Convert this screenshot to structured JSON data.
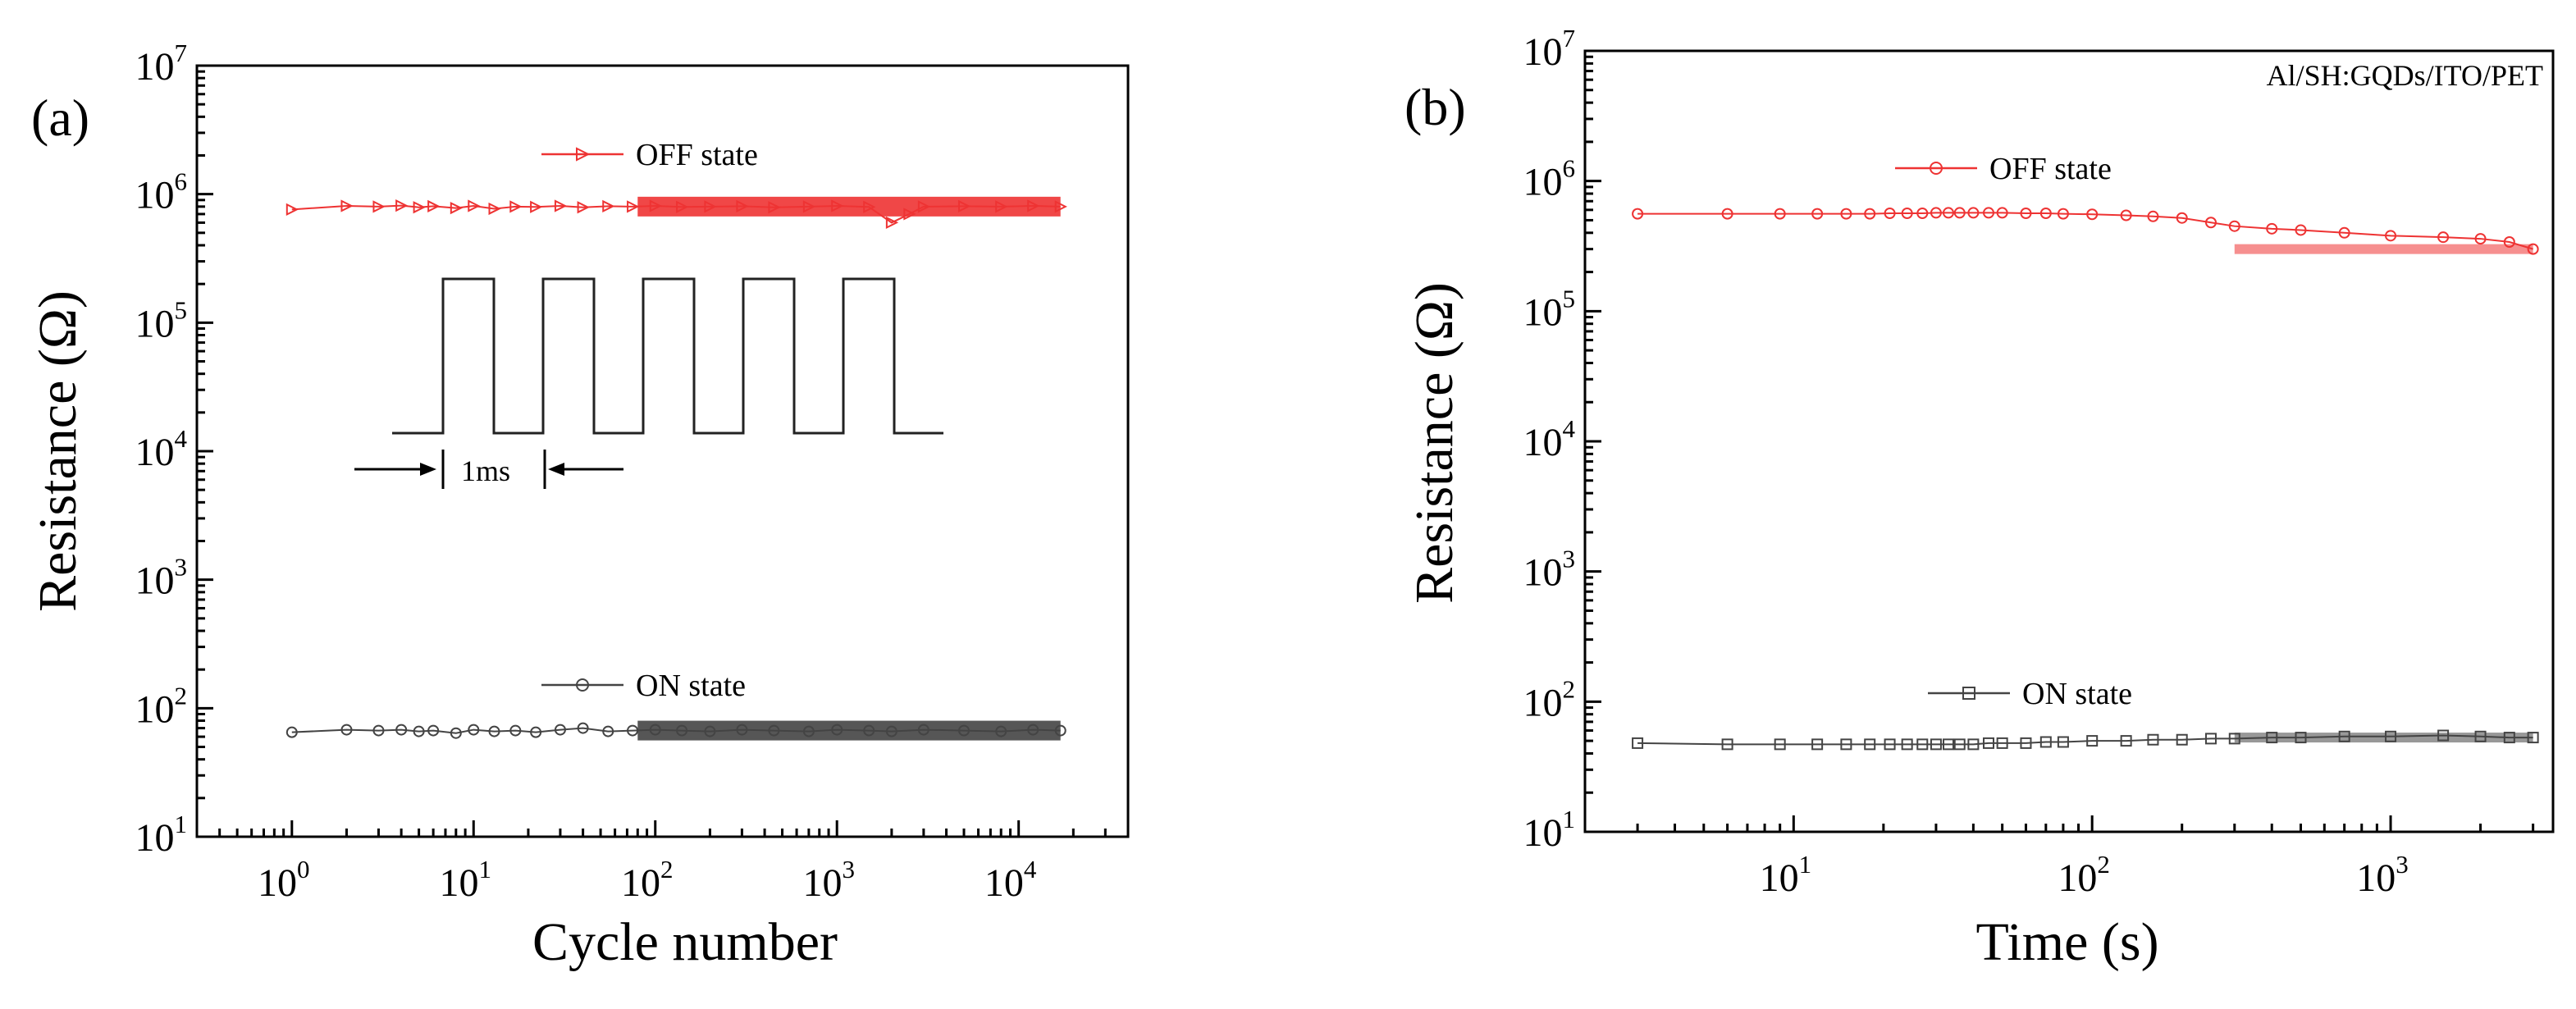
{
  "colors": {
    "off": "#ee3333",
    "on": "#444444",
    "axis": "#000000"
  },
  "chart_data": [
    {
      "id": "a",
      "panel_label": "(a)",
      "type": "scatter",
      "xscale": "log",
      "yscale": "log",
      "xlabel": "Cycle number",
      "ylabel": "Resistance (Ω)",
      "xlim": [
        0.3,
        40000
      ],
      "ylim": [
        10,
        10000000
      ],
      "xticks": [
        {
          "value": 1,
          "base": "10",
          "exp": "0"
        },
        {
          "value": 10,
          "base": "10",
          "exp": "1"
        },
        {
          "value": 100,
          "base": "10",
          "exp": "2"
        },
        {
          "value": 1000,
          "base": "10",
          "exp": "3"
        },
        {
          "value": 10000,
          "base": "10",
          "exp": "4"
        }
      ],
      "yticks": [
        {
          "value": 10,
          "base": "10",
          "exp": "1"
        },
        {
          "value": 100,
          "base": "10",
          "exp": "2"
        },
        {
          "value": 1000,
          "base": "10",
          "exp": "3"
        },
        {
          "value": 10000,
          "base": "10",
          "exp": "4"
        },
        {
          "value": 100000,
          "base": "10",
          "exp": "5"
        },
        {
          "value": 1000000,
          "base": "10",
          "exp": "6"
        },
        {
          "value": 10000000,
          "base": "10",
          "exp": "7"
        }
      ],
      "series": [
        {
          "name": "OFF state",
          "marker": "triangle-right",
          "color": "#ee3333",
          "x": [
            1,
            2,
            3,
            4,
            5,
            6,
            8,
            10,
            13,
            17,
            22,
            30,
            40,
            55,
            75,
            100,
            140,
            200,
            300,
            450,
            700,
            1000,
            1500,
            2000,
            2500,
            3000,
            5000,
            8000,
            12000,
            17000
          ],
          "y": [
            760000,
            810000,
            800000,
            815000,
            790000,
            805000,
            780000,
            810000,
            770000,
            800000,
            795000,
            810000,
            790000,
            805000,
            800000,
            810000,
            795000,
            800000,
            805000,
            790000,
            800000,
            810000,
            795000,
            600000,
            700000,
            800000,
            805000,
            800000,
            810000,
            800000
          ]
        },
        {
          "name": "ON state",
          "marker": "circle",
          "color": "#444444",
          "x": [
            1,
            2,
            3,
            4,
            5,
            6,
            8,
            10,
            13,
            17,
            22,
            30,
            40,
            55,
            75,
            100,
            140,
            200,
            300,
            450,
            700,
            1000,
            1500,
            2000,
            3000,
            5000,
            8000,
            12000,
            17000
          ],
          "y": [
            65,
            68,
            67,
            68,
            66,
            67,
            64,
            68,
            66,
            67,
            65,
            68,
            70,
            66,
            67,
            68,
            67,
            66,
            68,
            67,
            66,
            68,
            67,
            66,
            68,
            67,
            66,
            68,
            67
          ]
        }
      ],
      "legend_position": "inline-above-series",
      "inset": {
        "description_label": "1ms",
        "pulses": 5
      }
    },
    {
      "id": "b",
      "panel_label": "(b)",
      "type": "scatter",
      "xscale": "log",
      "yscale": "log",
      "xlabel": "Time (s)",
      "ylabel": "Resistance (Ω)",
      "xlim": [
        2,
        3500
      ],
      "ylim": [
        10,
        10000000
      ],
      "xticks": [
        {
          "value": 10,
          "base": "10",
          "exp": "1"
        },
        {
          "value": 100,
          "base": "10",
          "exp": "2"
        },
        {
          "value": 1000,
          "base": "10",
          "exp": "3"
        }
      ],
      "yticks": [
        {
          "value": 10,
          "base": "10",
          "exp": "1"
        },
        {
          "value": 100,
          "base": "10",
          "exp": "2"
        },
        {
          "value": 1000,
          "base": "10",
          "exp": "3"
        },
        {
          "value": 10000,
          "base": "10",
          "exp": "4"
        },
        {
          "value": 100000,
          "base": "10",
          "exp": "5"
        },
        {
          "value": 1000000,
          "base": "10",
          "exp": "6"
        },
        {
          "value": 10000000,
          "base": "10",
          "exp": "7"
        }
      ],
      "annotation": "Al/SH:GQDs/ITO/PET",
      "series": [
        {
          "name": "OFF state",
          "marker": "circle",
          "color": "#ee3333",
          "x": [
            3,
            6,
            9,
            12,
            15,
            18,
            21,
            24,
            27,
            30,
            33,
            36,
            40,
            45,
            50,
            60,
            70,
            80,
            100,
            130,
            160,
            200,
            250,
            300,
            400,
            500,
            700,
            1000,
            1500,
            2000,
            2500,
            3000
          ],
          "y": [
            560000,
            560000,
            560000,
            560000,
            560000,
            560000,
            565000,
            565000,
            565000,
            570000,
            570000,
            570000,
            570000,
            570000,
            570000,
            565000,
            565000,
            560000,
            555000,
            545000,
            535000,
            520000,
            480000,
            450000,
            430000,
            420000,
            400000,
            380000,
            370000,
            360000,
            340000,
            300000
          ]
        },
        {
          "name": "ON state",
          "marker": "square",
          "color": "#444444",
          "x": [
            3,
            6,
            9,
            12,
            15,
            18,
            21,
            24,
            27,
            30,
            33,
            36,
            40,
            45,
            50,
            60,
            70,
            80,
            100,
            130,
            160,
            200,
            250,
            300,
            400,
            500,
            700,
            1000,
            1500,
            2000,
            2500,
            3000
          ],
          "y": [
            48,
            47,
            47,
            47,
            47,
            47,
            47,
            47,
            47,
            47,
            47,
            47,
            47,
            48,
            48,
            48,
            49,
            49,
            50,
            50,
            51,
            51,
            52,
            52,
            53,
            53,
            54,
            54,
            55,
            54,
            53,
            53
          ]
        }
      ],
      "legend_position": "inline-above-series"
    }
  ]
}
